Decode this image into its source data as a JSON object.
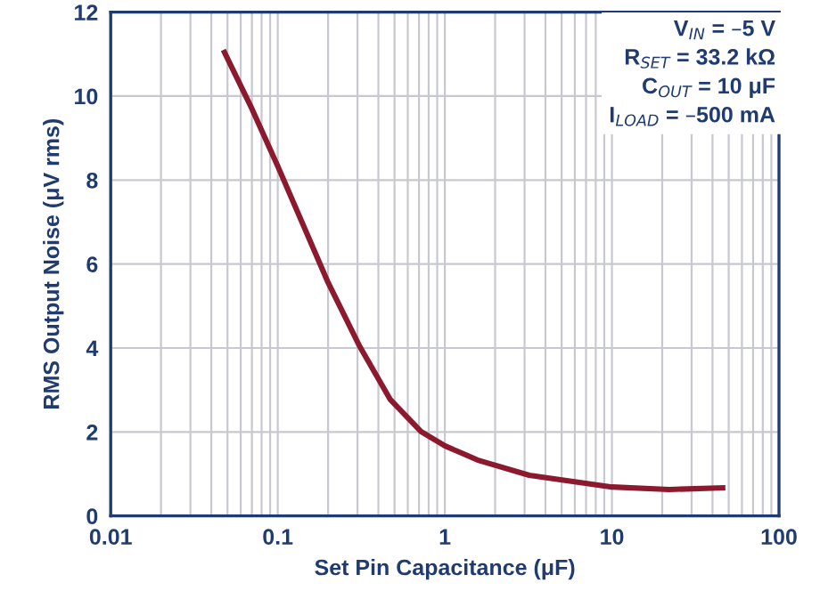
{
  "chart_data": {
    "type": "line",
    "xlabel": "Set Pin Capacitance (μF)",
    "ylabel": "RMS Output Noise (μV rms)",
    "annotations": [
      "V$_{IN}$ = –5 V",
      "R$_{SET}$ = 33.2 kΩ",
      "C$_{OUT}$ = 10 μF",
      "I$_{LOAD}$ = –500 mA"
    ],
    "log": "x",
    "xlim": [
      0.01,
      100
    ],
    "xticks": [
      0.01,
      0.1,
      1,
      10,
      100
    ],
    "ylim": [
      0,
      12
    ],
    "yticks": [
      0,
      2,
      4,
      6,
      8,
      10,
      12
    ],
    "grid": true,
    "series": [
      {
        "color": "#8b1a2e",
        "x": [
          0.048,
          0.07,
          0.1,
          0.2,
          0.31,
          0.47,
          0.72,
          1,
          1.6,
          3.2,
          10,
          22,
          46
        ],
        "values": [
          11.04,
          9.7,
          8.33,
          5.56,
          4.03,
          2.78,
          2.01,
          1.67,
          1.32,
          0.97,
          0.69,
          0.63,
          0.67
        ]
      }
    ]
  }
}
